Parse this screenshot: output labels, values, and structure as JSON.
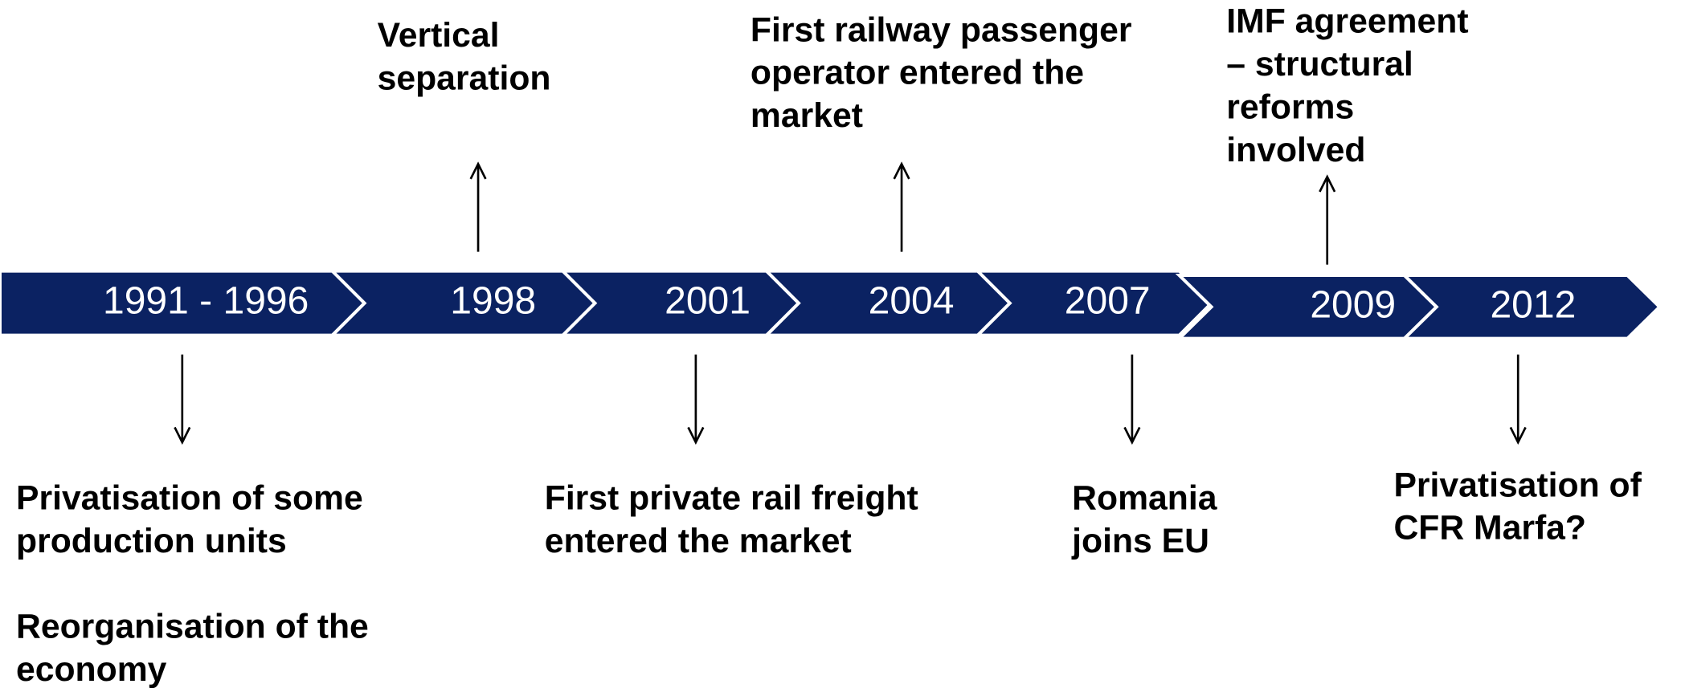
{
  "timeline": [
    "1991 - 1996",
    "1998",
    "2001",
    "2004",
    "2007",
    "2009",
    "2012"
  ],
  "events_above": [
    {
      "paragraphs": [
        [
          "Vertical",
          "separation"
        ]
      ]
    },
    {
      "paragraphs": [
        [
          "First railway passenger",
          "operator entered the",
          "market"
        ]
      ]
    },
    {
      "paragraphs": [
        [
          "IMF agreement",
          "– structural",
          "reforms",
          "involved"
        ]
      ]
    }
  ],
  "events_below": [
    {
      "paragraphs": [
        [
          "Privatisation of some",
          "production units"
        ],
        [
          "Reorganisation of the",
          "economy"
        ]
      ]
    },
    {
      "paragraphs": [
        [
          "First private rail freight",
          "entered the market"
        ]
      ]
    },
    {
      "paragraphs": [
        [
          "Romania",
          "joins EU"
        ]
      ]
    },
    {
      "paragraphs": [
        [
          "Privatisation of",
          "CFR Marfa?"
        ]
      ]
    }
  ]
}
